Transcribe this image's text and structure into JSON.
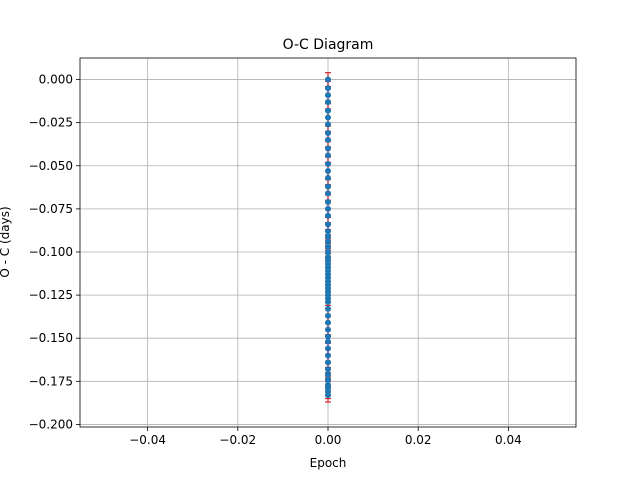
{
  "chart_data": {
    "type": "scatter",
    "title": "O-C Diagram",
    "xlabel": "Epoch",
    "ylabel": "O - C (days)",
    "xlim": [
      -0.055,
      0.055
    ],
    "ylim": [
      -0.2015,
      0.0125
    ],
    "xticks": [
      -0.04,
      -0.02,
      0.0,
      0.02,
      0.04
    ],
    "xtick_labels": [
      "−0.04",
      "−0.02",
      "0.00",
      "0.02",
      "0.04"
    ],
    "yticks": [
      0.0,
      -0.025,
      -0.05,
      -0.075,
      -0.1,
      -0.125,
      -0.15,
      -0.175,
      -0.2
    ],
    "ytick_labels": [
      "0.000",
      "−0.025",
      "−0.050",
      "−0.075",
      "−0.100",
      "−0.125",
      "−0.150",
      "−0.175",
      "−0.200"
    ],
    "grid": true,
    "marker_color": "#1f77b4",
    "errorbar_color": "#d62728",
    "series": [
      {
        "x": [
          0,
          0,
          0,
          0,
          0,
          0,
          0,
          0,
          0,
          0,
          0,
          0,
          0,
          0,
          0,
          0,
          0,
          0,
          0,
          0,
          0,
          0,
          0,
          0,
          0,
          0,
          0,
          0,
          0,
          0,
          0,
          0,
          0,
          0,
          0,
          0,
          0,
          0,
          0,
          0,
          0,
          0,
          0,
          0,
          0,
          0,
          0,
          0,
          0,
          0,
          0,
          0,
          0,
          0,
          0
        ],
        "y": [
          0.0,
          -0.005,
          -0.009,
          -0.013,
          -0.018,
          -0.022,
          -0.026,
          -0.031,
          -0.035,
          -0.04,
          -0.044,
          -0.049,
          -0.053,
          -0.057,
          -0.062,
          -0.066,
          -0.071,
          -0.075,
          -0.079,
          -0.084,
          -0.088,
          -0.091,
          -0.094,
          -0.097,
          -0.1,
          -0.103,
          -0.105,
          -0.107,
          -0.109,
          -0.111,
          -0.113,
          -0.115,
          -0.117,
          -0.119,
          -0.121,
          -0.123,
          -0.125,
          -0.127,
          -0.129,
          -0.133,
          -0.137,
          -0.141,
          -0.145,
          -0.149,
          -0.152,
          -0.156,
          -0.16,
          -0.164,
          -0.168,
          -0.171,
          -0.174,
          -0.177,
          -0.179,
          -0.181,
          -0.183
        ],
        "error": 0.004
      }
    ]
  }
}
